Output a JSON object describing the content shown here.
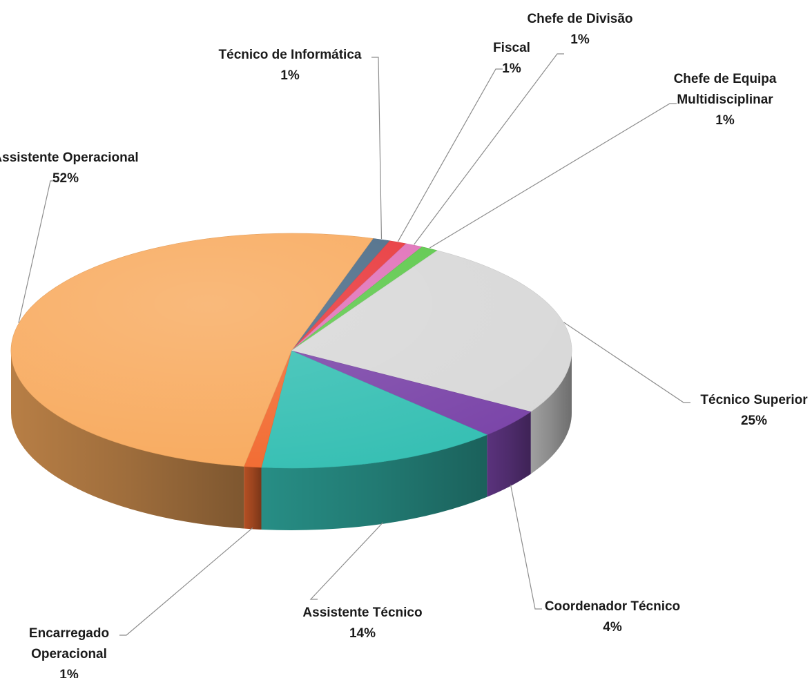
{
  "chart_data": {
    "type": "pie",
    "style": "3d-pie",
    "title": "",
    "slices": [
      {
        "name": "Técnico de Informática",
        "lines": [
          "Técnico de Informática"
        ],
        "value": 1,
        "label": "1%",
        "color": "#4a6a86"
      },
      {
        "name": "Fiscal",
        "lines": [
          "Fiscal"
        ],
        "value": 1,
        "label": "1%",
        "color": "#e8363a"
      },
      {
        "name": "Chefe de Divisão",
        "lines": [
          "Chefe de Divisão"
        ],
        "value": 1,
        "label": "1%",
        "color": "#e070b8"
      },
      {
        "name": "Chefe de Equipa Multidisciplinar",
        "lines": [
          "Chefe de Equipa",
          "Multidisciplinar"
        ],
        "value": 1,
        "label": "1%",
        "color": "#5cc84a"
      },
      {
        "name": "Técnico Superior",
        "lines": [
          "Técnico Superior"
        ],
        "value": 25,
        "label": "25%",
        "color": "#d8d8d8"
      },
      {
        "name": "Coordenador Técnico",
        "lines": [
          "Coordenador Técnico"
        ],
        "value": 4,
        "label": "4%",
        "color": "#7a44a8"
      },
      {
        "name": "Assistente Técnico",
        "lines": [
          "Assistente Técnico"
        ],
        "value": 14,
        "label": "14%",
        "color": "#35bfb3"
      },
      {
        "name": "Encarregado Operacional",
        "lines": [
          "Encarregado",
          "Operacional"
        ],
        "value": 1,
        "label": "1%",
        "color": "#f26a30"
      },
      {
        "name": "Assistente Operacional",
        "lines": [
          "Assistente Operacional"
        ],
        "value": 52,
        "label": "52%",
        "color": "#f8aa5e"
      }
    ]
  }
}
